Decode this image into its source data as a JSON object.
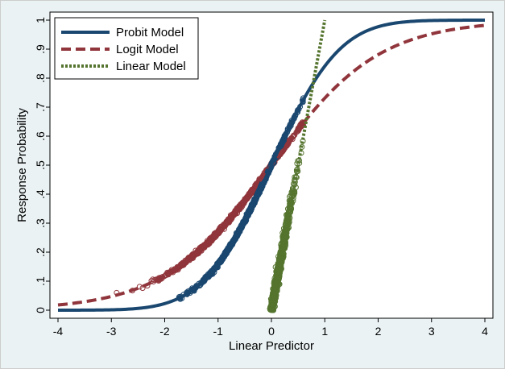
{
  "chart_data": {
    "type": "line",
    "xlabel": "Linear Predictor",
    "ylabel": "Response Probability",
    "xlim": [
      -4,
      4
    ],
    "ylim": [
      0,
      1
    ],
    "x_ticks": [
      -4,
      -3,
      -2,
      -1,
      0,
      1,
      2,
      3,
      4
    ],
    "x_tick_labels": [
      "-4",
      "-3",
      "-2",
      "-1",
      "0",
      "1",
      "2",
      "3",
      "4"
    ],
    "y_ticks": [
      0,
      0.1,
      0.2,
      0.3,
      0.4,
      0.5,
      0.6,
      0.7,
      0.8,
      0.9,
      1
    ],
    "y_tick_labels": [
      "0",
      ".1",
      ".2",
      ".3",
      ".4",
      ".5",
      ".6",
      ".7",
      ".8",
      ".9",
      "1"
    ],
    "grid": false,
    "legend_position": "top-left",
    "series": [
      {
        "name": "Probit Model",
        "color": "#1a476f",
        "style": "solid",
        "x": [
          -4,
          -3.5,
          -3,
          -2.5,
          -2,
          -1.5,
          -1,
          -0.5,
          0,
          0.5,
          1,
          1.5,
          2,
          2.5,
          3,
          3.5,
          4
        ],
        "y": [
          3e-05,
          0.0002,
          0.0013,
          0.0062,
          0.0228,
          0.0668,
          0.1587,
          0.3085,
          0.5,
          0.6915,
          0.8413,
          0.9332,
          0.9772,
          0.9938,
          0.9987,
          0.9998,
          1.0
        ]
      },
      {
        "name": "Logit Model",
        "color": "#90353b",
        "style": "dashed",
        "x": [
          -4,
          -3.5,
          -3,
          -2.5,
          -2,
          -1.5,
          -1,
          -0.5,
          0,
          0.5,
          1,
          1.5,
          2,
          2.5,
          3,
          3.5,
          4
        ],
        "y": [
          0.018,
          0.029,
          0.047,
          0.076,
          0.119,
          0.182,
          0.269,
          0.378,
          0.5,
          0.622,
          0.731,
          0.818,
          0.881,
          0.924,
          0.953,
          0.971,
          0.982
        ]
      },
      {
        "name": "Linear Model",
        "color": "#55752f",
        "style": "dotted",
        "x": [
          0.0,
          1.0
        ],
        "y": [
          0.0,
          1.0
        ]
      }
    ],
    "scatter_series": [
      {
        "name": "Probit Model",
        "color": "#1a476f",
        "x_range": [
          -1.75,
          0.6
        ],
        "y_range": [
          0.04,
          0.72
        ],
        "description": "dense hollow-circle points along probit curve"
      },
      {
        "name": "Logit Model",
        "color": "#90353b",
        "x_range": [
          -3.0,
          0.6
        ],
        "y_range": [
          0.05,
          0.66
        ],
        "description": "dense hollow-circle points along logit curve"
      },
      {
        "name": "Linear Model",
        "color": "#55752f",
        "x_range": [
          -0.1,
          0.6
        ],
        "y_range": [
          0.0,
          0.6
        ],
        "description": "dense hollow-circle points along linear model"
      }
    ]
  }
}
